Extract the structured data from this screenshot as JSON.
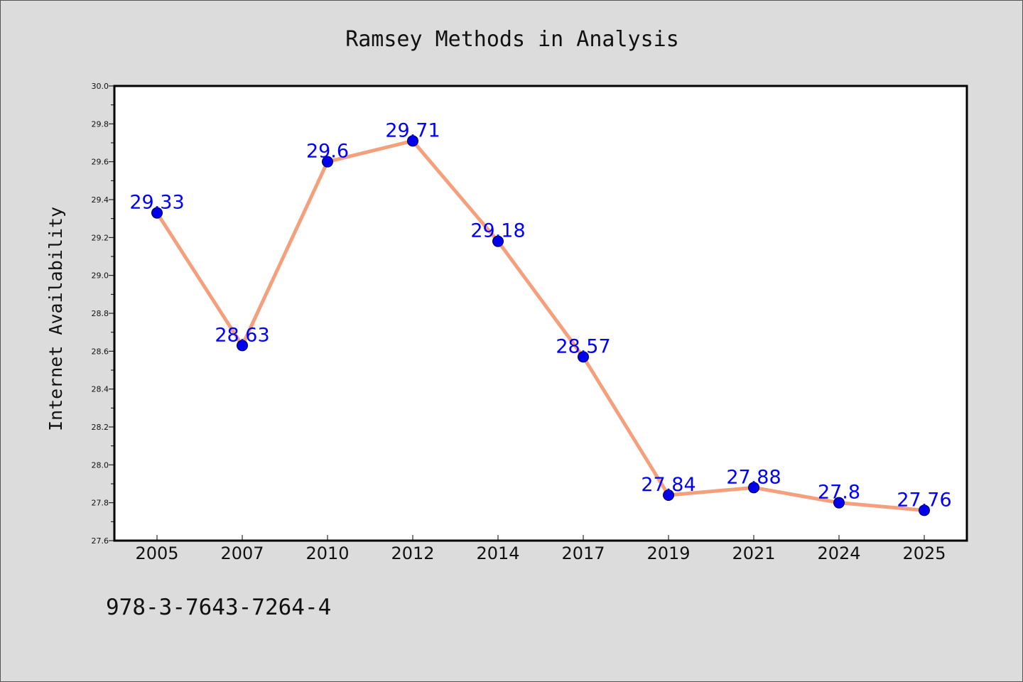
{
  "chart_data": {
    "type": "line",
    "title": "Ramsey Methods in Analysis",
    "xlabel": "",
    "ylabel": "Internet Availability",
    "categories": [
      "2005",
      "2007",
      "2010",
      "2012",
      "2014",
      "2017",
      "2019",
      "2021",
      "2024",
      "2025"
    ],
    "values": [
      29.33,
      28.63,
      29.6,
      29.71,
      29.18,
      28.57,
      27.84,
      27.88,
      27.8,
      27.76
    ],
    "data_labels": [
      "29.33",
      "28.63",
      "29.6",
      "29.71",
      "29.18",
      "28.57",
      "27.84",
      "27.88",
      "27.8",
      "27.76"
    ],
    "ylim": [
      27.6,
      30.0
    ],
    "yticks": [
      "27.6",
      "27.8",
      "28.0",
      "28.2",
      "28.4",
      "28.6",
      "28.8",
      "29.0",
      "29.2",
      "29.4",
      "29.6",
      "29.8",
      "30.0"
    ],
    "grid": false,
    "legend": "none",
    "colors": {
      "line": "#f4a07c",
      "marker": "#0000ee",
      "label": "#0000ff",
      "plot_background": "#ffffff",
      "figure_background": "#dcdcdc"
    }
  },
  "footnote": "978-3-7643-7264-4"
}
